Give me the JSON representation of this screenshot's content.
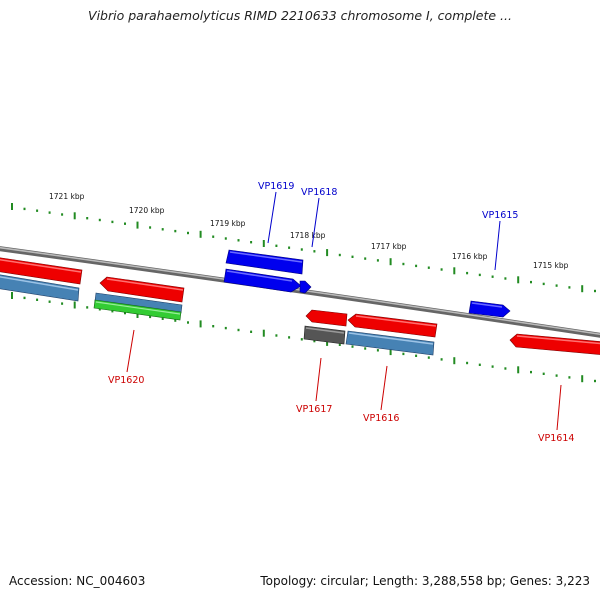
{
  "title": "Vibrio parahaemolyticus RIMD 2210633 chromosome I, complete ...",
  "footer": {
    "accession": "Accession: NC_004603",
    "summary": "Topology: circular; Length: 3,288,558 bp; Genes: 3,223"
  },
  "colors": {
    "forward_gene": "#0000ee",
    "reverse_gene": "#ee0000",
    "cds_track": "#4682b4",
    "rna_track": "#33cc33",
    "pseudo_track": "#555555",
    "backbone": "#888888",
    "ticks": "#228b22",
    "forward_label": "#0000cc",
    "reverse_label": "#cc0000"
  },
  "scale_labels": [
    "1721 kbp",
    "1720 kbp",
    "1719 kbp",
    "1718 kbp",
    "1717 kbp",
    "1716 kbp",
    "1715 kbp"
  ],
  "gene_labels": [
    {
      "text": "VP1619",
      "strand": "forward"
    },
    {
      "text": "VP1618",
      "strand": "forward"
    },
    {
      "text": "VP1615",
      "strand": "forward"
    },
    {
      "text": "VP1620",
      "strand": "reverse"
    },
    {
      "text": "VP1617",
      "strand": "reverse"
    },
    {
      "text": "VP1616",
      "strand": "reverse"
    },
    {
      "text": "VP1614",
      "strand": "reverse"
    }
  ]
}
